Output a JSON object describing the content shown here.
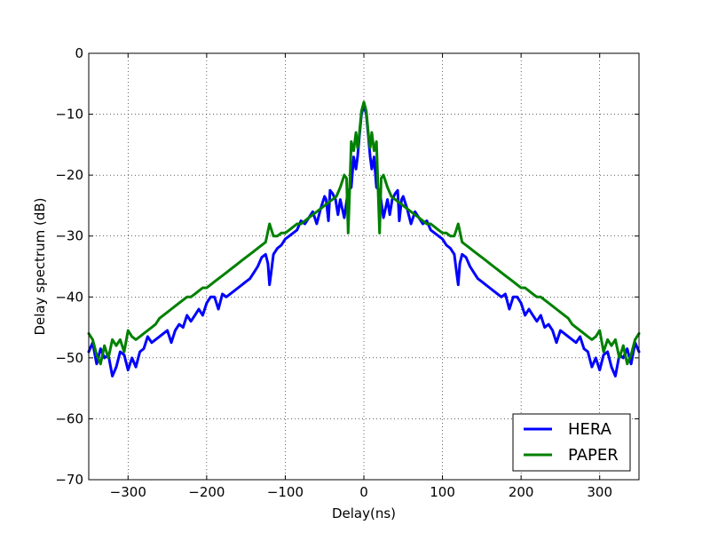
{
  "chart_data": {
    "type": "line",
    "title": "",
    "xlabel": "Delay(ns)",
    "ylabel": "Delay spectrum (dB)",
    "xlim": [
      -350,
      350
    ],
    "ylim": [
      -70,
      0
    ],
    "xticks": [
      -300,
      -200,
      -100,
      0,
      100,
      200,
      300
    ],
    "yticks": [
      0,
      -10,
      -20,
      -30,
      -40,
      -50,
      -60,
      -70
    ],
    "xtick_labels": [
      "−300",
      "−200",
      "−100",
      "0",
      "100",
      "200",
      "300"
    ],
    "ytick_labels": [
      "0",
      "−10",
      "−20",
      "−30",
      "−40",
      "−50",
      "−60",
      "−70"
    ],
    "grid": true,
    "legend_position": "lower-right",
    "series": [
      {
        "name": "HERA",
        "color": "#0000ff",
        "x": [
          0,
          3,
          6,
          8,
          10,
          13,
          16,
          20,
          25,
          30,
          33,
          36,
          40,
          43,
          45,
          48,
          50,
          55,
          60,
          65,
          70,
          75,
          80,
          85,
          90,
          95,
          100,
          105,
          110,
          115,
          118,
          120,
          122,
          125,
          130,
          135,
          140,
          145,
          150,
          155,
          160,
          165,
          170,
          175,
          180,
          185,
          190,
          195,
          200,
          205,
          210,
          215,
          220,
          225,
          230,
          235,
          240,
          245,
          250,
          255,
          260,
          265,
          270,
          275,
          280,
          285,
          290,
          295,
          300,
          305,
          310,
          315,
          320,
          325,
          330,
          335,
          340,
          345,
          350
        ],
        "values": [
          -8.5,
          -10,
          -14,
          -17,
          -19,
          -17,
          -22,
          -22.5,
          -27,
          -24,
          -26.5,
          -24,
          -23,
          -22.5,
          -27.5,
          -24,
          -23.5,
          -25.5,
          -28,
          -26,
          -27,
          -28,
          -27.5,
          -29,
          -29.5,
          -30,
          -30.5,
          -31.5,
          -32,
          -33,
          -36,
          -38,
          -34.5,
          -33,
          -33.5,
          -35,
          -36,
          -37,
          -37.5,
          -38,
          -38.5,
          -39,
          -39.5,
          -40,
          -39.5,
          -42,
          -40,
          -40,
          -41,
          -43,
          -42,
          -43,
          -44,
          -43,
          -45,
          -44.5,
          -45.5,
          -47.5,
          -45.5,
          -46,
          -46.5,
          -47,
          -47.5,
          -46.5,
          -48.5,
          -49,
          -51.5,
          -50,
          -52,
          -49.5,
          -49,
          -51.5,
          -53,
          -49.5,
          -50,
          -48.5,
          -51,
          -47.5,
          -49
        ]
      },
      {
        "name": "PAPER",
        "color": "#008000",
        "x": [
          0,
          3,
          6,
          8,
          10,
          13,
          16,
          18,
          20,
          22,
          25,
          30,
          35,
          40,
          45,
          50,
          55,
          60,
          65,
          70,
          75,
          80,
          85,
          90,
          95,
          100,
          105,
          110,
          115,
          120,
          125,
          130,
          135,
          140,
          145,
          150,
          155,
          160,
          165,
          170,
          175,
          180,
          185,
          190,
          195,
          200,
          205,
          210,
          215,
          220,
          225,
          230,
          235,
          240,
          245,
          250,
          255,
          260,
          265,
          270,
          275,
          280,
          285,
          290,
          295,
          300,
          305,
          310,
          315,
          320,
          325,
          330,
          335,
          340,
          345,
          350
        ],
        "values": [
          -8,
          -9.5,
          -13.5,
          -15.5,
          -13,
          -16,
          -14.5,
          -22,
          -29.5,
          -20.5,
          -20,
          -22,
          -23.5,
          -24,
          -24.5,
          -25,
          -25.5,
          -26,
          -26.5,
          -27,
          -27.5,
          -28,
          -28,
          -28.5,
          -29,
          -29.5,
          -29.5,
          -30,
          -30,
          -28,
          -31,
          -31.5,
          -32,
          -32.5,
          -33,
          -33.5,
          -34,
          -34.5,
          -35,
          -35.5,
          -36,
          -36.5,
          -37,
          -37.5,
          -38,
          -38.5,
          -38.5,
          -39,
          -39.5,
          -40,
          -40,
          -40.5,
          -41,
          -41.5,
          -42,
          -42.5,
          -43,
          -43.5,
          -44.5,
          -45,
          -45.5,
          -46,
          -46.5,
          -47,
          -46.5,
          -45.5,
          -49,
          -47,
          -48,
          -47,
          -50,
          -48,
          -51,
          -49.5,
          -47,
          -46
        ]
      }
    ]
  }
}
